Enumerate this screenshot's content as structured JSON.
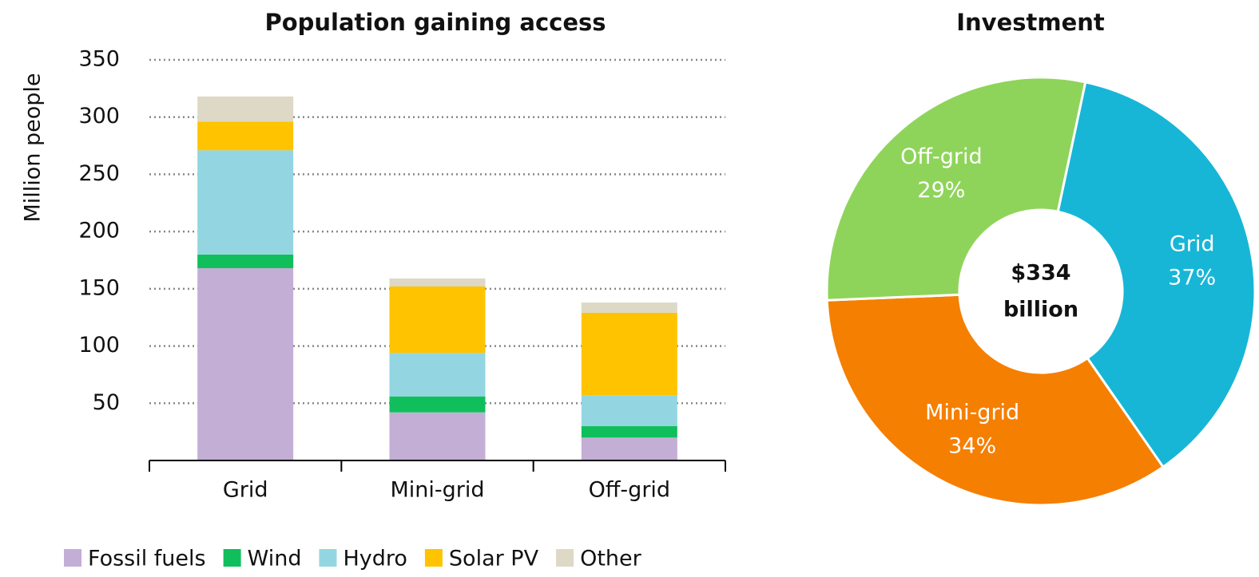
{
  "chart_data": [
    {
      "type": "bar",
      "title": "Population gaining access",
      "y_label": "Million people",
      "stacked": true,
      "categories": [
        "Grid",
        "Mini-grid",
        "Off-grid"
      ],
      "series": [
        {
          "name": "Fossil fuels",
          "color": "#c3aed6",
          "values": [
            168,
            42,
            20
          ]
        },
        {
          "name": "Wind",
          "color": "#10bf5c",
          "values": [
            12,
            14,
            10
          ]
        },
        {
          "name": "Hydro",
          "color": "#93d6e2",
          "values": [
            91,
            38,
            27
          ]
        },
        {
          "name": "Solar PV",
          "color": "#ffc300",
          "values": [
            25,
            58,
            72
          ]
        },
        {
          "name": "Other",
          "color": "#ddd9c6",
          "values": [
            22,
            7,
            9
          ]
        }
      ],
      "ylim": [
        0,
        350
      ],
      "yticks": [
        50,
        100,
        150,
        200,
        250,
        300,
        350
      ],
      "grid": true,
      "legend": "bottom"
    },
    {
      "type": "pie",
      "title": "Investment",
      "donut": true,
      "center_label": [
        "$334",
        "billion"
      ],
      "categories": [
        "Grid",
        "Mini-grid",
        "Off-grid"
      ],
      "values": [
        37,
        34,
        29
      ],
      "value_labels": [
        "37%",
        "34%",
        "29%"
      ],
      "colors": [
        "#17b6d6",
        "#f57f00",
        "#8fd45a"
      ]
    }
  ]
}
